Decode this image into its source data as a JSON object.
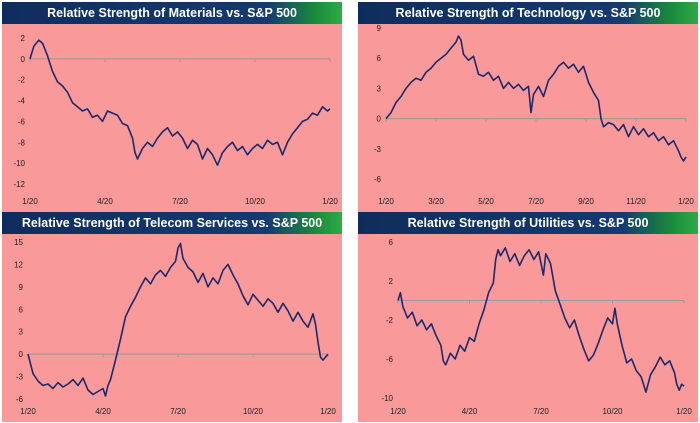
{
  "colors": {
    "line": "#1a2a6c",
    "plot_bg": "#f9999a",
    "zero_line": "#999999",
    "header": "#0f2d5c"
  },
  "chart_data": [
    {
      "type": "line",
      "title": "Relative Strength of Materials vs. S&P 500",
      "ylim": [
        -12,
        2
      ],
      "yticks": [
        2,
        0,
        -2,
        -4,
        -6,
        -8,
        -10,
        -12
      ],
      "xticks": [
        "1/20",
        "4/20",
        "7/20",
        "10/20",
        "1/20"
      ],
      "x_months": [
        0,
        3,
        6,
        9,
        12
      ],
      "points": [
        [
          0,
          0
        ],
        [
          0.15,
          1.2
        ],
        [
          0.35,
          1.8
        ],
        [
          0.5,
          1.5
        ],
        [
          0.7,
          0.3
        ],
        [
          0.9,
          -1.2
        ],
        [
          1.1,
          -2.2
        ],
        [
          1.3,
          -2.6
        ],
        [
          1.5,
          -3.2
        ],
        [
          1.7,
          -4.2
        ],
        [
          1.9,
          -4.6
        ],
        [
          2.1,
          -5.0
        ],
        [
          2.3,
          -4.8
        ],
        [
          2.5,
          -5.6
        ],
        [
          2.7,
          -5.4
        ],
        [
          2.9,
          -6.0
        ],
        [
          3.1,
          -5.0
        ],
        [
          3.3,
          -5.2
        ],
        [
          3.5,
          -5.4
        ],
        [
          3.7,
          -6.2
        ],
        [
          3.9,
          -6.4
        ],
        [
          4.1,
          -7.6
        ],
        [
          4.2,
          -9.0
        ],
        [
          4.3,
          -9.6
        ],
        [
          4.5,
          -8.6
        ],
        [
          4.7,
          -8.0
        ],
        [
          4.9,
          -8.4
        ],
        [
          5.1,
          -7.6
        ],
        [
          5.3,
          -7.0
        ],
        [
          5.5,
          -6.6
        ],
        [
          5.7,
          -7.4
        ],
        [
          5.9,
          -7.0
        ],
        [
          6.1,
          -7.6
        ],
        [
          6.3,
          -8.6
        ],
        [
          6.5,
          -7.8
        ],
        [
          6.7,
          -8.2
        ],
        [
          6.9,
          -9.6
        ],
        [
          7.1,
          -8.6
        ],
        [
          7.3,
          -9.2
        ],
        [
          7.5,
          -10.2
        ],
        [
          7.7,
          -9.0
        ],
        [
          7.9,
          -8.4
        ],
        [
          8.1,
          -8.0
        ],
        [
          8.3,
          -8.8
        ],
        [
          8.5,
          -8.4
        ],
        [
          8.7,
          -9.2
        ],
        [
          8.9,
          -8.6
        ],
        [
          9.1,
          -8.2
        ],
        [
          9.3,
          -8.6
        ],
        [
          9.5,
          -7.8
        ],
        [
          9.7,
          -8.2
        ],
        [
          9.9,
          -8.0
        ],
        [
          10.1,
          -9.2
        ],
        [
          10.3,
          -8.0
        ],
        [
          10.5,
          -7.2
        ],
        [
          10.7,
          -6.6
        ],
        [
          10.9,
          -6.0
        ],
        [
          11.1,
          -5.8
        ],
        [
          11.3,
          -5.2
        ],
        [
          11.5,
          -5.4
        ],
        [
          11.7,
          -4.6
        ],
        [
          11.9,
          -5.0
        ],
        [
          12,
          -4.8
        ]
      ]
    },
    {
      "type": "line",
      "title": "Relative Strength of Technology vs. S&P 500",
      "ylim": [
        -6,
        9
      ],
      "yticks": [
        9,
        6,
        3,
        0,
        -3,
        -6
      ],
      "xticks": [
        "1/20",
        "3/20",
        "5/20",
        "7/20",
        "9/20",
        "11/20",
        "1/20"
      ],
      "x_months": [
        0,
        2,
        4,
        6,
        8,
        10,
        12
      ],
      "points": [
        [
          0,
          0
        ],
        [
          0.2,
          0.6
        ],
        [
          0.4,
          1.6
        ],
        [
          0.6,
          2.2
        ],
        [
          0.8,
          3.0
        ],
        [
          1.0,
          3.6
        ],
        [
          1.2,
          4.0
        ],
        [
          1.4,
          3.8
        ],
        [
          1.6,
          4.6
        ],
        [
          1.8,
          5.0
        ],
        [
          2.0,
          5.6
        ],
        [
          2.2,
          6.0
        ],
        [
          2.4,
          6.4
        ],
        [
          2.6,
          7.0
        ],
        [
          2.8,
          7.6
        ],
        [
          2.9,
          8.2
        ],
        [
          3.0,
          7.8
        ],
        [
          3.1,
          6.4
        ],
        [
          3.3,
          5.8
        ],
        [
          3.5,
          6.2
        ],
        [
          3.7,
          4.4
        ],
        [
          3.9,
          4.2
        ],
        [
          4.1,
          4.6
        ],
        [
          4.3,
          3.8
        ],
        [
          4.5,
          4.2
        ],
        [
          4.7,
          3.0
        ],
        [
          4.9,
          3.6
        ],
        [
          5.1,
          3.0
        ],
        [
          5.3,
          3.4
        ],
        [
          5.5,
          2.8
        ],
        [
          5.7,
          3.2
        ],
        [
          5.8,
          0.6
        ],
        [
          5.9,
          2.4
        ],
        [
          6.1,
          3.2
        ],
        [
          6.3,
          2.2
        ],
        [
          6.5,
          3.8
        ],
        [
          6.7,
          4.4
        ],
        [
          6.9,
          5.2
        ],
        [
          7.1,
          5.6
        ],
        [
          7.3,
          5.0
        ],
        [
          7.5,
          5.4
        ],
        [
          7.7,
          4.6
        ],
        [
          7.9,
          5.2
        ],
        [
          8.1,
          3.6
        ],
        [
          8.3,
          2.6
        ],
        [
          8.5,
          1.8
        ],
        [
          8.6,
          0.0
        ],
        [
          8.7,
          -0.8
        ],
        [
          8.9,
          -0.4
        ],
        [
          9.1,
          -0.6
        ],
        [
          9.3,
          -1.2
        ],
        [
          9.5,
          -0.6
        ],
        [
          9.7,
          -1.8
        ],
        [
          9.9,
          -0.8
        ],
        [
          10.1,
          -1.6
        ],
        [
          10.3,
          -1.0
        ],
        [
          10.5,
          -1.8
        ],
        [
          10.7,
          -1.4
        ],
        [
          10.9,
          -2.2
        ],
        [
          11.1,
          -1.8
        ],
        [
          11.3,
          -2.6
        ],
        [
          11.5,
          -2.2
        ],
        [
          11.7,
          -3.2
        ],
        [
          11.8,
          -3.8
        ],
        [
          11.9,
          -4.2
        ],
        [
          12,
          -3.8
        ]
      ]
    },
    {
      "type": "line",
      "title": "Relative Strength of Telecom Services vs. S&P 500",
      "ylim": [
        -6,
        15
      ],
      "yticks": [
        15,
        12,
        9,
        6,
        3,
        0,
        -3,
        -6
      ],
      "xticks": [
        "1/20",
        "4/20",
        "7/20",
        "10/20",
        "1/20"
      ],
      "x_months": [
        0,
        3,
        6,
        9,
        12
      ],
      "points": [
        [
          0,
          0
        ],
        [
          0.2,
          -2.6
        ],
        [
          0.4,
          -3.6
        ],
        [
          0.6,
          -4.2
        ],
        [
          0.8,
          -4.0
        ],
        [
          1.0,
          -4.6
        ],
        [
          1.2,
          -3.8
        ],
        [
          1.4,
          -4.4
        ],
        [
          1.6,
          -4.0
        ],
        [
          1.8,
          -3.4
        ],
        [
          2.0,
          -4.2
        ],
        [
          2.2,
          -3.2
        ],
        [
          2.4,
          -4.8
        ],
        [
          2.6,
          -5.4
        ],
        [
          2.8,
          -5.0
        ],
        [
          3.0,
          -4.6
        ],
        [
          3.1,
          -5.6
        ],
        [
          3.2,
          -4.2
        ],
        [
          3.3,
          -3.4
        ],
        [
          3.5,
          -0.8
        ],
        [
          3.7,
          2.0
        ],
        [
          3.9,
          5.0
        ],
        [
          4.1,
          6.4
        ],
        [
          4.3,
          7.6
        ],
        [
          4.5,
          9.0
        ],
        [
          4.7,
          10.2
        ],
        [
          4.9,
          9.4
        ],
        [
          5.1,
          10.6
        ],
        [
          5.3,
          11.2
        ],
        [
          5.5,
          10.4
        ],
        [
          5.7,
          11.6
        ],
        [
          5.9,
          12.4
        ],
        [
          6.0,
          14.2
        ],
        [
          6.1,
          14.8
        ],
        [
          6.2,
          12.8
        ],
        [
          6.4,
          11.6
        ],
        [
          6.6,
          11.0
        ],
        [
          6.8,
          9.6
        ],
        [
          7.0,
          10.8
        ],
        [
          7.2,
          9.0
        ],
        [
          7.4,
          10.2
        ],
        [
          7.6,
          9.4
        ],
        [
          7.8,
          11.2
        ],
        [
          8.0,
          12.0
        ],
        [
          8.2,
          10.6
        ],
        [
          8.4,
          9.4
        ],
        [
          8.6,
          7.8
        ],
        [
          8.8,
          6.6
        ],
        [
          9.0,
          8.0
        ],
        [
          9.2,
          7.2
        ],
        [
          9.4,
          6.4
        ],
        [
          9.6,
          7.4
        ],
        [
          9.8,
          6.8
        ],
        [
          10.0,
          5.6
        ],
        [
          10.2,
          6.8
        ],
        [
          10.4,
          5.8
        ],
        [
          10.6,
          4.4
        ],
        [
          10.8,
          5.6
        ],
        [
          11.0,
          4.4
        ],
        [
          11.2,
          3.6
        ],
        [
          11.4,
          5.4
        ],
        [
          11.5,
          4.0
        ],
        [
          11.6,
          1.6
        ],
        [
          11.7,
          -0.4
        ],
        [
          11.8,
          -0.8
        ],
        [
          11.9,
          -0.4
        ],
        [
          12,
          0
        ]
      ]
    },
    {
      "type": "line",
      "title": "Relative Strength of Utilities vs. S&P 500",
      "ylim": [
        -10,
        6
      ],
      "yticks": [
        6,
        2,
        -2,
        -6,
        -10
      ],
      "xticks": [
        "1/20",
        "4/20",
        "7/20",
        "10/20",
        "1/20"
      ],
      "x_months": [
        0,
        3,
        6,
        9,
        12
      ],
      "points": [
        [
          0,
          0
        ],
        [
          0.1,
          0.8
        ],
        [
          0.2,
          -0.6
        ],
        [
          0.4,
          -1.8
        ],
        [
          0.6,
          -1.2
        ],
        [
          0.8,
          -2.6
        ],
        [
          1.0,
          -2.0
        ],
        [
          1.2,
          -3.0
        ],
        [
          1.4,
          -2.4
        ],
        [
          1.6,
          -3.6
        ],
        [
          1.8,
          -4.6
        ],
        [
          1.9,
          -6.2
        ],
        [
          2.0,
          -6.6
        ],
        [
          2.2,
          -5.4
        ],
        [
          2.4,
          -6.0
        ],
        [
          2.6,
          -4.6
        ],
        [
          2.8,
          -5.2
        ],
        [
          3.0,
          -3.8
        ],
        [
          3.2,
          -4.2
        ],
        [
          3.4,
          -2.4
        ],
        [
          3.6,
          -1.0
        ],
        [
          3.8,
          0.8
        ],
        [
          4.0,
          1.8
        ],
        [
          4.1,
          4.2
        ],
        [
          4.2,
          5.2
        ],
        [
          4.3,
          4.6
        ],
        [
          4.5,
          5.4
        ],
        [
          4.7,
          4.0
        ],
        [
          4.9,
          4.8
        ],
        [
          5.1,
          3.6
        ],
        [
          5.3,
          4.6
        ],
        [
          5.5,
          5.2
        ],
        [
          5.7,
          4.2
        ],
        [
          5.9,
          5.0
        ],
        [
          6.1,
          2.6
        ],
        [
          6.2,
          4.8
        ],
        [
          6.4,
          3.8
        ],
        [
          6.6,
          1.0
        ],
        [
          6.8,
          -0.4
        ],
        [
          7.0,
          -1.8
        ],
        [
          7.2,
          -2.8
        ],
        [
          7.4,
          -2.0
        ],
        [
          7.6,
          -3.6
        ],
        [
          7.8,
          -5.0
        ],
        [
          8.0,
          -6.2
        ],
        [
          8.2,
          -5.6
        ],
        [
          8.4,
          -4.4
        ],
        [
          8.6,
          -3.0
        ],
        [
          8.8,
          -1.8
        ],
        [
          9.0,
          -2.4
        ],
        [
          9.1,
          -0.8
        ],
        [
          9.2,
          -2.4
        ],
        [
          9.4,
          -4.6
        ],
        [
          9.6,
          -6.4
        ],
        [
          9.8,
          -6.0
        ],
        [
          10.0,
          -7.2
        ],
        [
          10.2,
          -7.8
        ],
        [
          10.4,
          -9.4
        ],
        [
          10.6,
          -7.6
        ],
        [
          10.8,
          -6.8
        ],
        [
          11.0,
          -5.8
        ],
        [
          11.2,
          -6.6
        ],
        [
          11.4,
          -6.2
        ],
        [
          11.6,
          -7.4
        ],
        [
          11.7,
          -8.6
        ],
        [
          11.8,
          -9.2
        ],
        [
          11.9,
          -8.6
        ],
        [
          12,
          -8.8
        ]
      ]
    }
  ]
}
